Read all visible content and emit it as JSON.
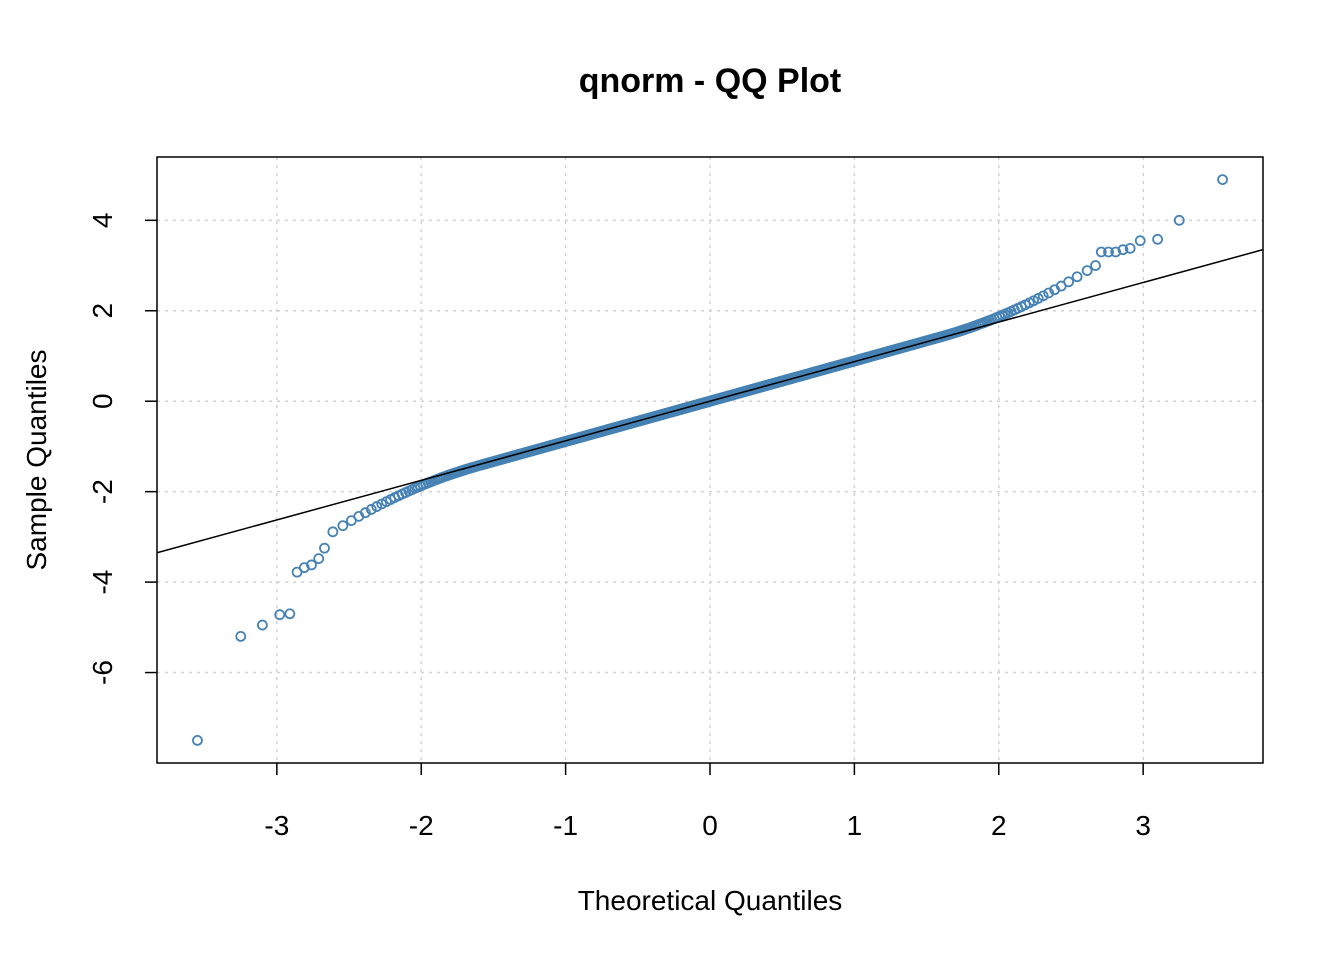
{
  "chart_data": {
    "type": "scatter",
    "title": "qnorm - QQ Plot",
    "xlabel": "Theoretical Quantiles",
    "ylabel": "Sample Quantiles",
    "xlim": [
      -3.83,
      3.83
    ],
    "ylim": [
      -8.0,
      5.4
    ],
    "x_ticks": [
      -3,
      -2,
      -1,
      0,
      1,
      2,
      3
    ],
    "y_ticks": [
      4,
      2,
      0,
      -2,
      -4,
      -6
    ],
    "grid": true,
    "point_color": "#4682B4",
    "line_color": "#000000",
    "reference_line": {
      "intercept": 0.0,
      "slope": 0.875
    },
    "points": {
      "n": 1000,
      "body_slope": 0.89,
      "body_intercept": 0.0,
      "tail_points": [
        [
          -3.55,
          -7.5
        ],
        [
          -3.25,
          -5.2
        ],
        [
          -3.1,
          -4.95
        ],
        [
          -2.98,
          -4.72
        ],
        [
          -2.91,
          -4.7
        ],
        [
          -2.86,
          -3.78
        ],
        [
          -2.81,
          -3.68
        ],
        [
          -2.76,
          -3.62
        ],
        [
          -2.71,
          -3.48
        ],
        [
          -2.67,
          -3.25
        ],
        [
          2.67,
          3.0
        ],
        [
          2.71,
          3.3
        ],
        [
          2.76,
          3.3
        ],
        [
          2.81,
          3.3
        ],
        [
          2.86,
          3.35
        ],
        [
          2.91,
          3.38
        ],
        [
          2.98,
          3.55
        ],
        [
          3.1,
          3.58
        ],
        [
          3.25,
          4.0
        ],
        [
          3.55,
          4.9
        ]
      ]
    }
  }
}
